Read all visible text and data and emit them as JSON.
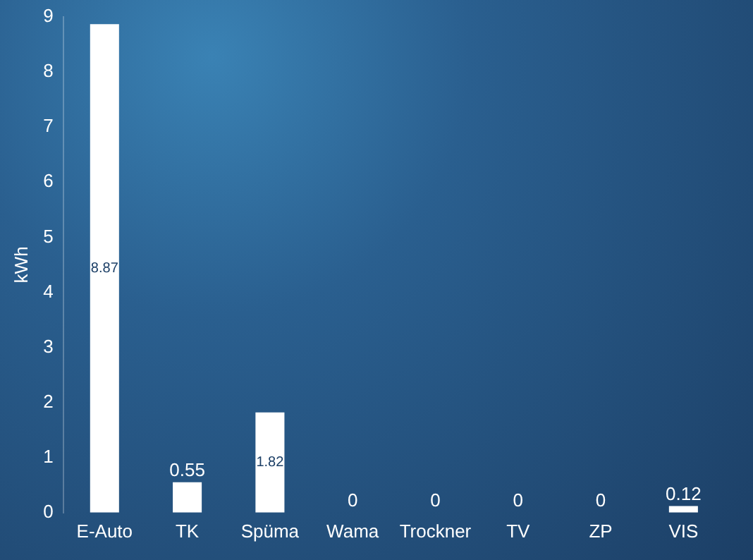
{
  "chart_data": {
    "type": "bar",
    "ylabel": "kWh",
    "categories": [
      "E-Auto",
      "TK",
      "Spüma",
      "Wama",
      "Trockner",
      "TV",
      "ZP",
      "VIS"
    ],
    "values": [
      8.87,
      0.55,
      1.82,
      0,
      0,
      0,
      0,
      0.12
    ],
    "color": "#ffffff",
    "ylim": [
      0,
      9
    ],
    "yticks": [
      0,
      1,
      2,
      3,
      4,
      5,
      6,
      7,
      8,
      9
    ],
    "grid": false,
    "data_labels": true
  }
}
